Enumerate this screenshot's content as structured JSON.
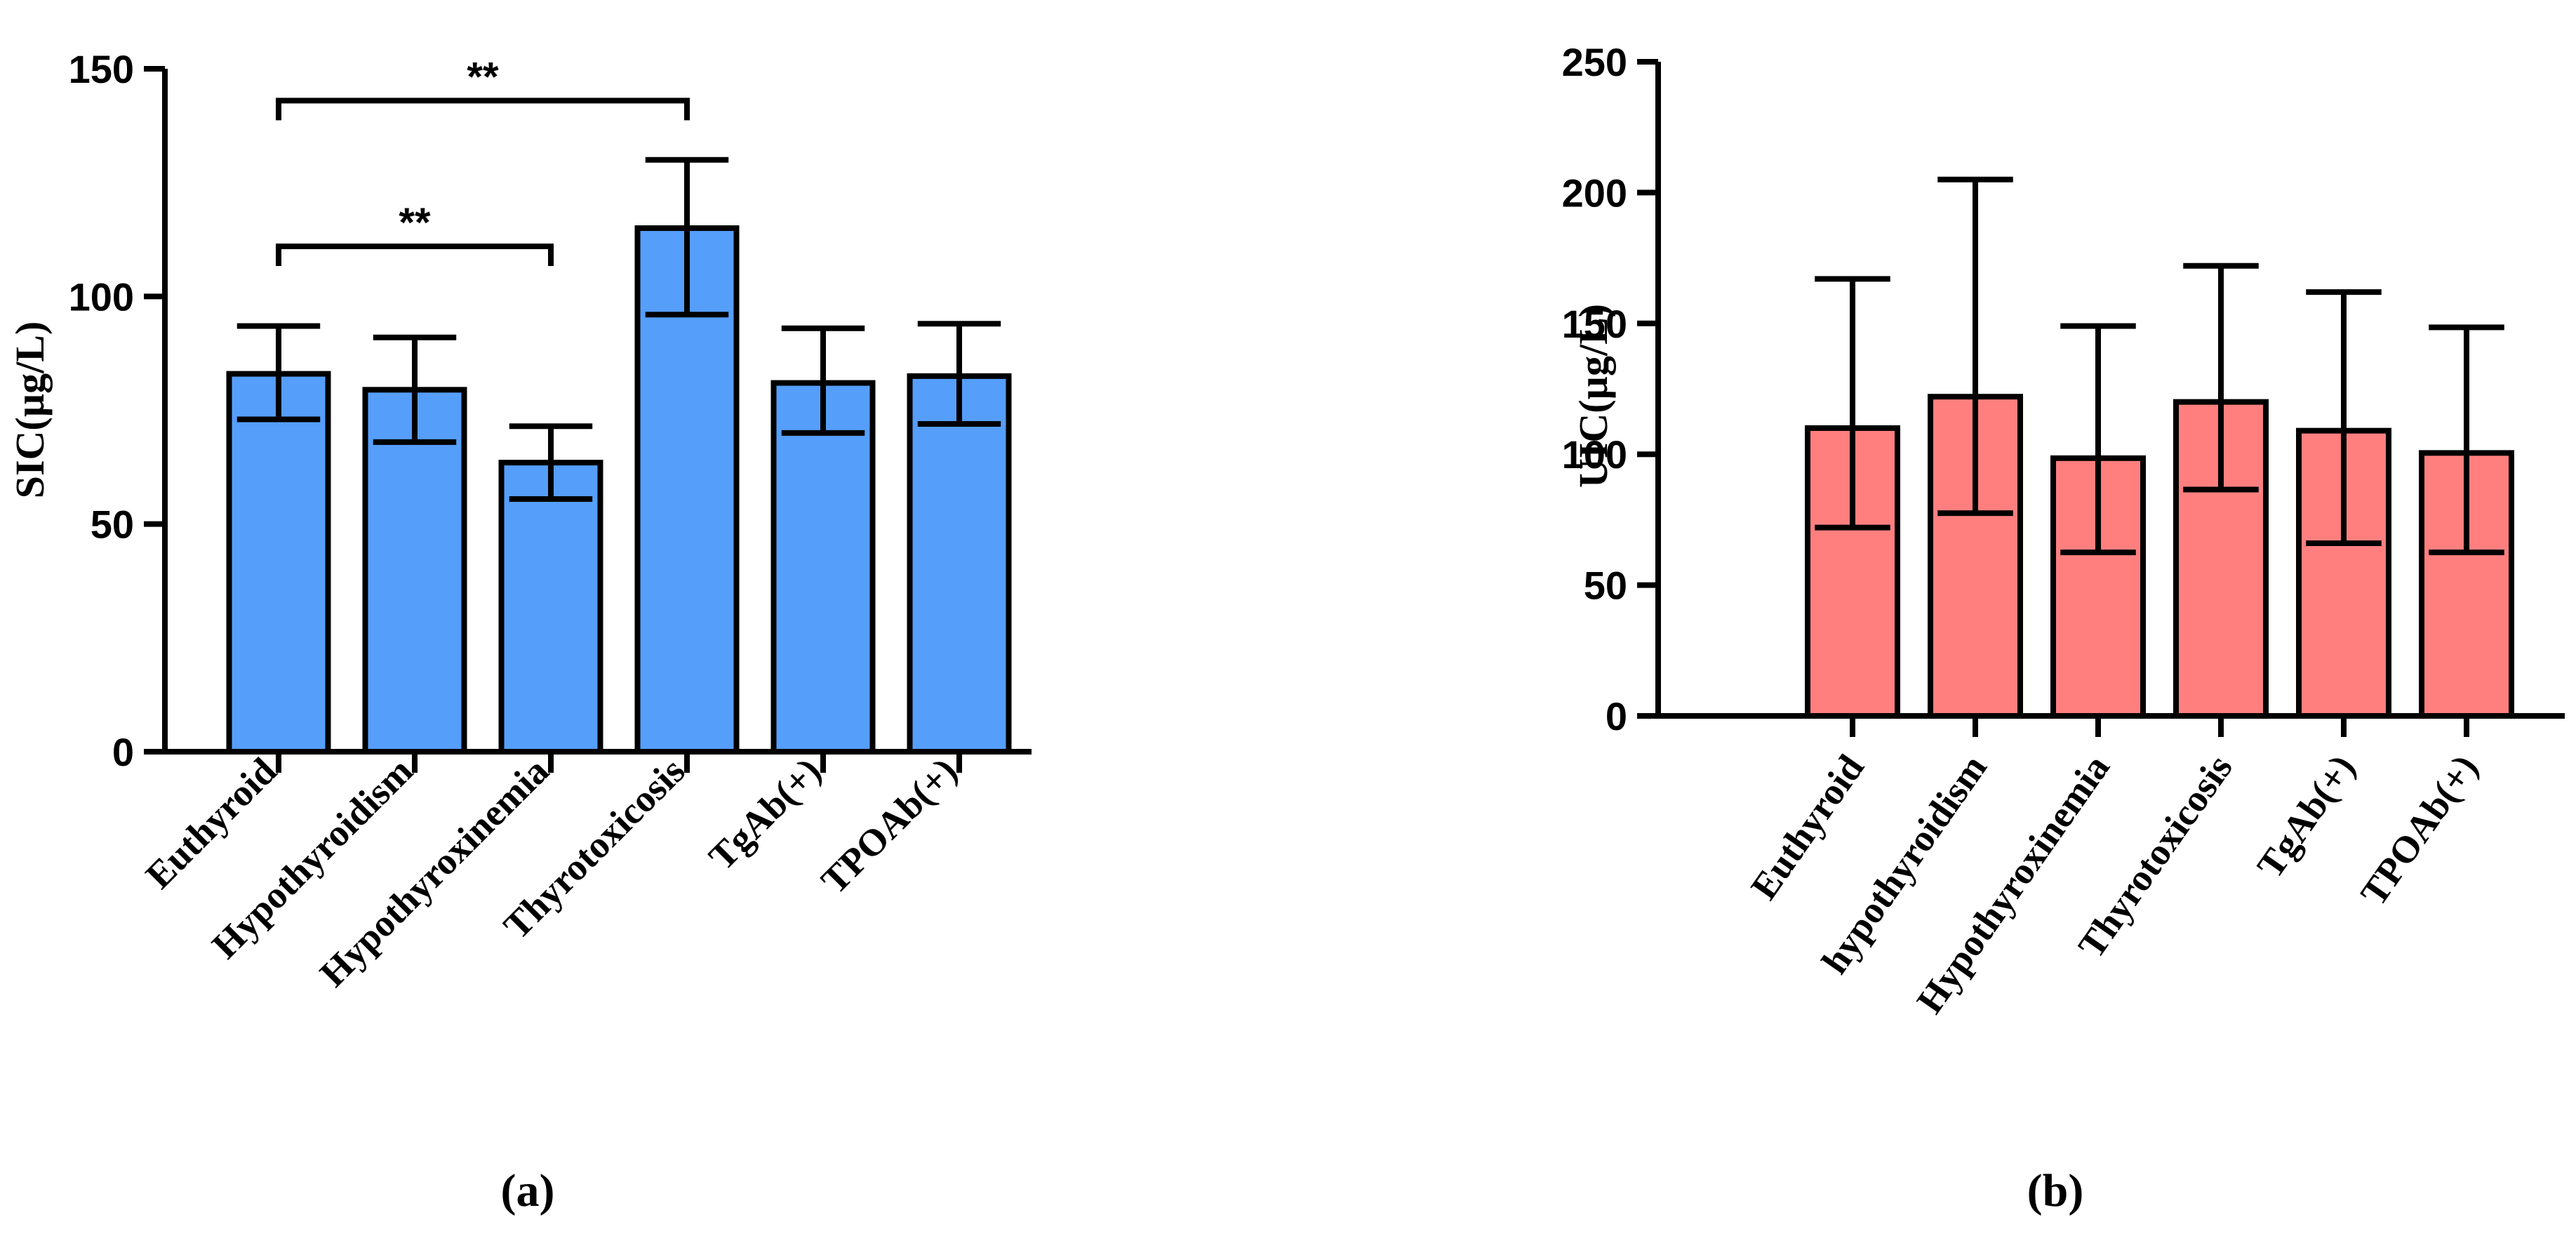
{
  "chart_data": [
    {
      "type": "bar",
      "panel_label": "(a)",
      "ylabel": "SIC(µg/L)",
      "xlabel": "",
      "ylim": [
        0,
        150
      ],
      "yticks": [
        0,
        50,
        100,
        150
      ],
      "categories": [
        "Euthyroid",
        "Hypothyroidism",
        "Hypothyroxinemia",
        "Thyrotoxicosis",
        "TgAb(+)",
        "TPOAb(+)"
      ],
      "values": [
        83,
        79.5,
        63.5,
        115,
        81,
        82.5
      ],
      "error_low": [
        73,
        68,
        55.5,
        96,
        70,
        72
      ],
      "error_high": [
        93.5,
        91,
        71.5,
        130,
        93,
        94
      ],
      "bar_color": "#559EFA",
      "significance": [
        {
          "from": 0,
          "to": 2,
          "label": "**",
          "level": 111
        },
        {
          "from": 0,
          "to": 3,
          "label": "**",
          "level": 143
        }
      ]
    },
    {
      "type": "bar",
      "panel_label": "(b)",
      "ylabel": "UIC(µg/L)",
      "xlabel": "",
      "ylim": [
        0,
        250
      ],
      "yticks": [
        0,
        50,
        100,
        150,
        200,
        250
      ],
      "categories": [
        "Euthyroid",
        "hypothyroidism",
        "Hypothyroxinemia",
        "Thyrotoxicosis",
        "TgAb(+)",
        "TPOAb(+)"
      ],
      "values": [
        110,
        122,
        98.5,
        120,
        109,
        100.5
      ],
      "error_low": [
        72,
        77.5,
        62.5,
        86.5,
        66,
        62.5
      ],
      "error_high": [
        167,
        205,
        149,
        172,
        162,
        148.5
      ],
      "bar_color": "#FF7F7F",
      "significance": []
    }
  ]
}
